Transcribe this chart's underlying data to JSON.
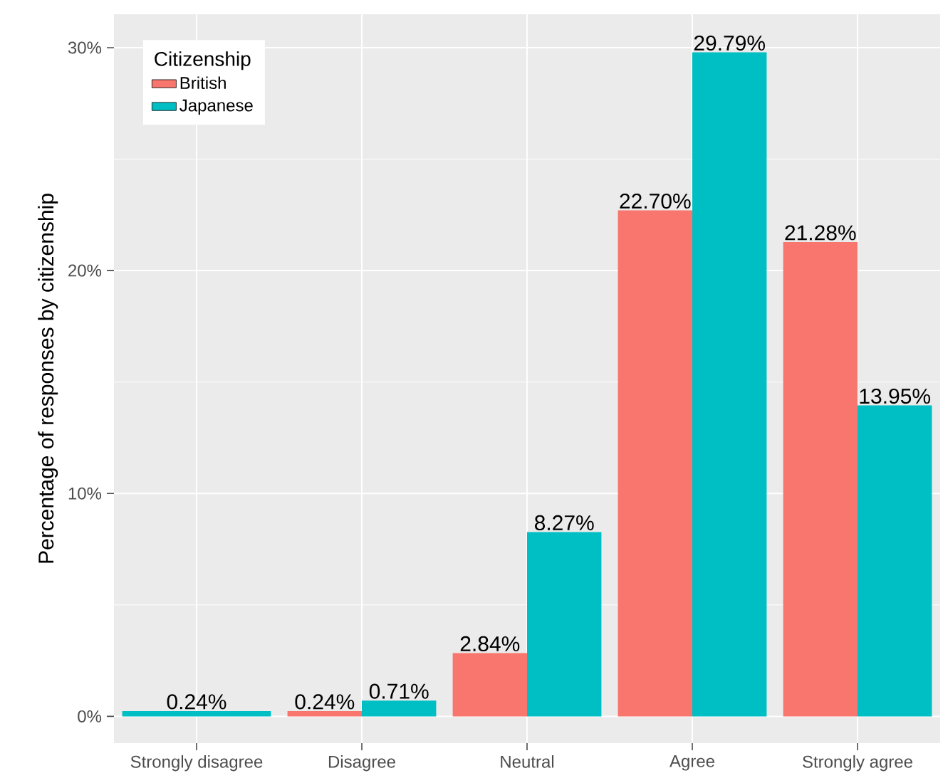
{
  "chart_data": {
    "type": "bar",
    "ylabel": "Percentage of responses by citizenship",
    "legend_title": "Citizenship",
    "categories": [
      "Strongly disagree",
      "Disagree",
      "Neutral",
      "Agree",
      "Strongly agree"
    ],
    "series": [
      {
        "name": "British",
        "color": "#f8766d",
        "values": [
          null,
          0.24,
          2.84,
          22.7,
          21.28
        ],
        "value_labels": [
          null,
          "0.24%",
          "2.84%",
          "22.70%",
          "21.28%"
        ]
      },
      {
        "name": "Japanese",
        "color": "#00bfc4",
        "values": [
          0.24,
          0.71,
          8.27,
          29.79,
          13.95
        ],
        "value_labels": [
          "0.24%",
          "0.71%",
          "8.27%",
          "29.79%",
          "13.95%"
        ]
      }
    ],
    "ylim": [
      -1.2,
      31.5
    ],
    "yticks": [
      {
        "value": 0,
        "label": "0%"
      },
      {
        "value": 10,
        "label": "10%"
      },
      {
        "value": 20,
        "label": "20%"
      },
      {
        "value": 30,
        "label": "30%"
      }
    ],
    "grid": true,
    "legend": "top left"
  }
}
